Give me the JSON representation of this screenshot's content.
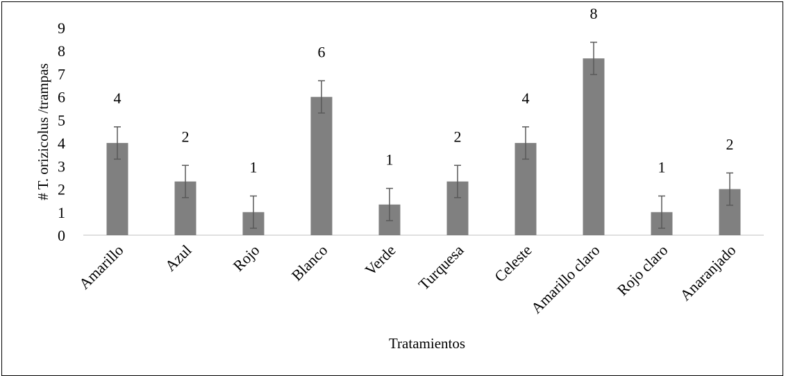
{
  "chart_data": {
    "type": "bar",
    "categories": [
      "Amarillo",
      "Azul",
      "Rojo",
      "Blanco",
      "Verde",
      "Turquesa",
      "Celeste",
      "Amarillo claro",
      "Rojo claro",
      "Anaranjado"
    ],
    "values": [
      4.0,
      2.33,
      1.0,
      6.0,
      1.33,
      2.33,
      4.0,
      7.67,
      1.0,
      2.0
    ],
    "error_bars": [
      0.7,
      0.7,
      0.7,
      0.7,
      0.7,
      0.7,
      0.7,
      0.7,
      0.7,
      0.7
    ],
    "data_labels": [
      "4",
      "2",
      "1",
      "6",
      "1",
      "2",
      "4",
      "8",
      "1",
      "2"
    ],
    "title": "",
    "xlabel": "Tratamientos",
    "ylabel": "# T. orizicolus /trampas",
    "ylim": [
      0,
      9
    ],
    "yticks": [
      0,
      1,
      2,
      3,
      4,
      5,
      6,
      7,
      8,
      9
    ],
    "grid": false,
    "legend": "none",
    "bar_color": "#808080",
    "error_color": "#595959"
  }
}
